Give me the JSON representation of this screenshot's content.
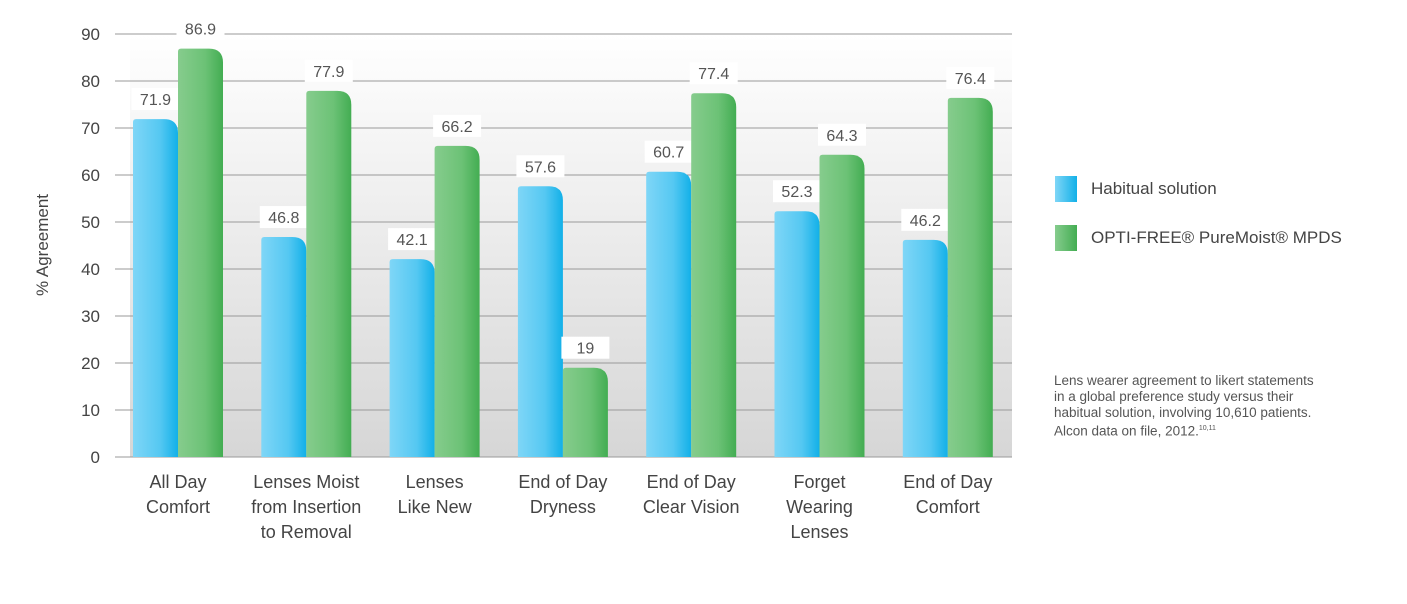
{
  "chart_data": {
    "type": "bar",
    "title": "",
    "xlabel": "",
    "ylabel": "% Agreement",
    "ylim": [
      0,
      90
    ],
    "yticks": [
      0,
      10,
      20,
      30,
      40,
      50,
      60,
      70,
      80,
      90
    ],
    "grid": true,
    "legend_position": "right",
    "categories": [
      [
        "All Day",
        "Comfort"
      ],
      [
        "Lenses Moist",
        "from Insertion",
        "to Removal"
      ],
      [
        "Lenses",
        "Like New"
      ],
      [
        "End of Day",
        "Dryness"
      ],
      [
        "End of Day",
        "Clear Vision"
      ],
      [
        "Forget",
        "Wearing",
        "Lenses"
      ],
      [
        "End of Day",
        "Comfort"
      ]
    ],
    "series": [
      {
        "name": "Habitual solution",
        "color": "#4cc6f2",
        "values": [
          71.9,
          46.8,
          42.1,
          57.6,
          60.7,
          52.3,
          46.2
        ],
        "labels": [
          "71.9",
          "46.8",
          "42.1",
          "57.6",
          "60.7",
          "52.3",
          "46.2"
        ]
      },
      {
        "name": "OPTI-FREE® PureMoist® MPDS",
        "color": "#5fbf6c",
        "values": [
          86.9,
          77.9,
          66.2,
          19,
          77.4,
          64.3,
          76.4
        ],
        "labels": [
          "86.9",
          "77.9",
          "66.2",
          "19",
          "77.4",
          "64.3",
          "76.4"
        ]
      }
    ],
    "annotation": [
      "Lens wearer agreement to likert statements",
      "in a global preference study versus their",
      "habitual solution, involving 10,610 patients.",
      "Alcon data on file, 2012."
    ],
    "annotation_superscript": "10,11"
  }
}
